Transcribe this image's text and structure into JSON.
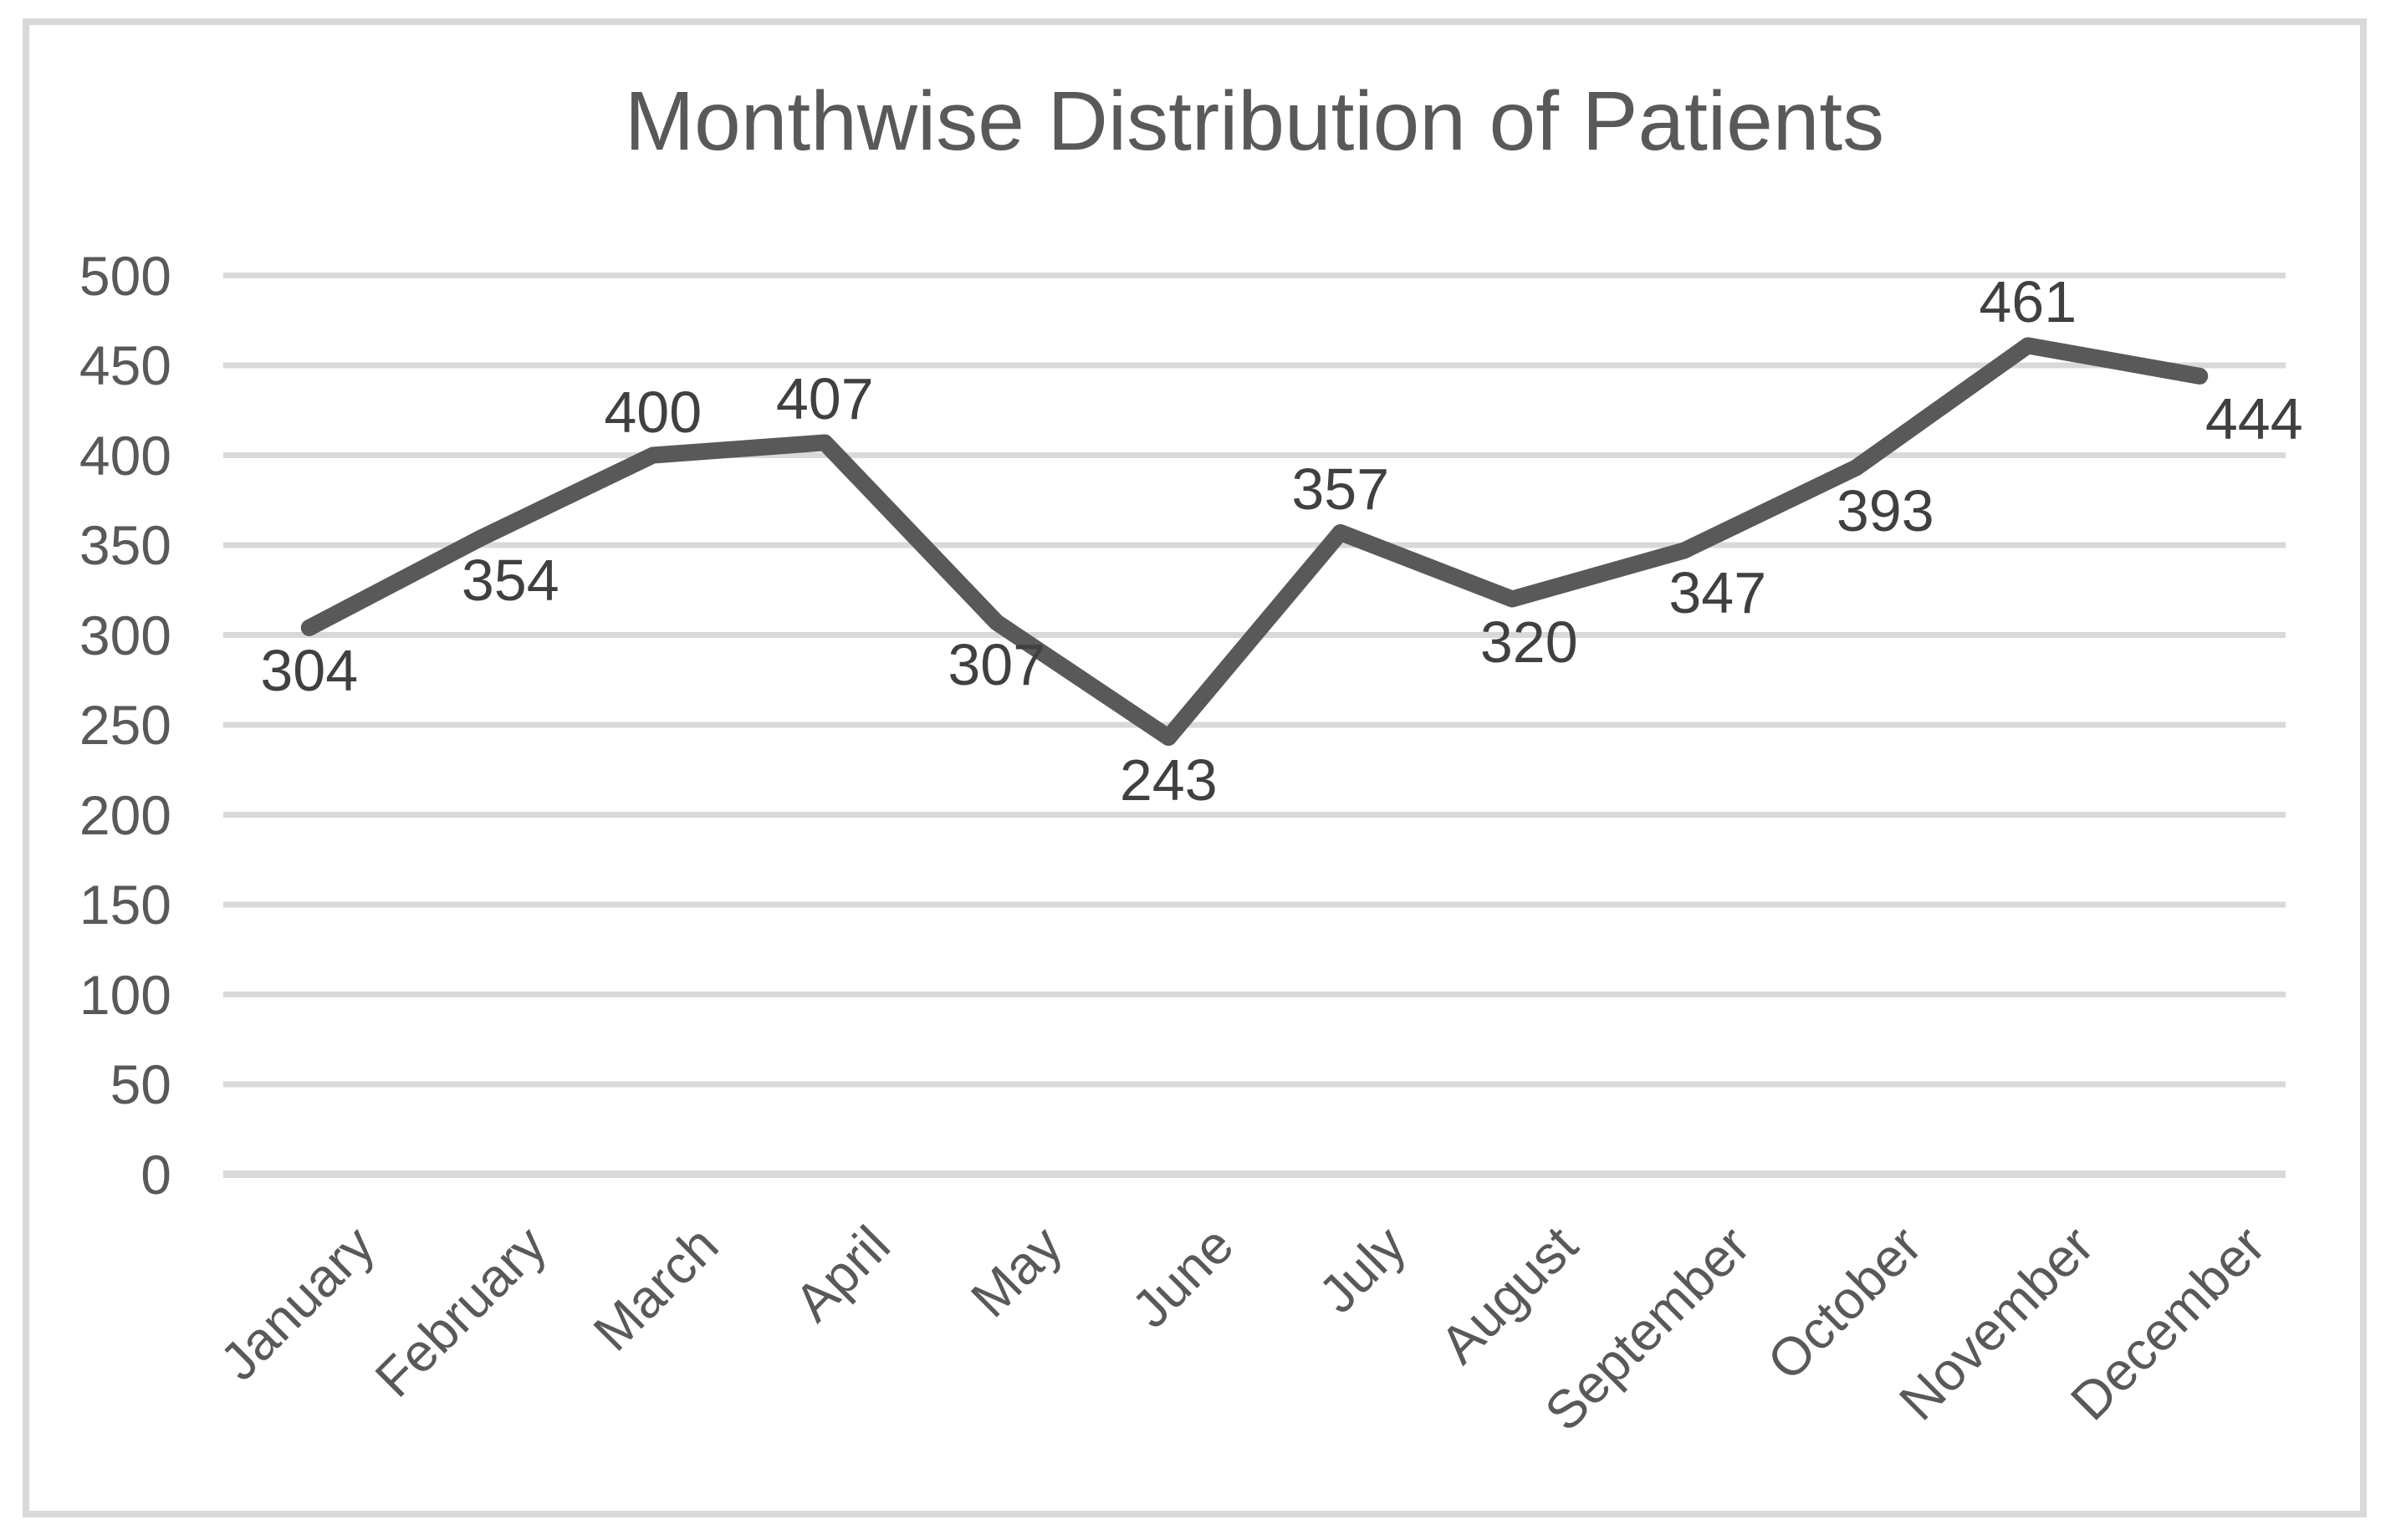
{
  "chart_data": {
    "type": "line",
    "title": "Monthwise Distribution of Patients",
    "categories": [
      "January",
      "February",
      "March",
      "April",
      "May",
      "June",
      "July",
      "August",
      "September",
      "October",
      "November",
      "December"
    ],
    "series": [
      {
        "name": "Patients",
        "values": [
          304,
          354,
          400,
          407,
          307,
          243,
          357,
          320,
          347,
          393,
          461,
          444
        ]
      }
    ],
    "xlabel": "",
    "ylabel": "",
    "ylim": [
      0,
      500
    ],
    "y_tick_step": 50,
    "y_tick_labels": [
      "0",
      "50",
      "100",
      "150",
      "200",
      "250",
      "300",
      "350",
      "400",
      "450",
      "500"
    ],
    "grid": "horizontal",
    "legend": "none",
    "x_label_rotation_deg": 45,
    "data_labels_shown": true,
    "label_positions": [
      "below",
      "below",
      "above",
      "above",
      "below",
      "below",
      "above",
      "below",
      "below",
      "below",
      "above",
      "below"
    ],
    "label_dx": [
      0,
      35,
      0,
      0,
      0,
      0,
      0,
      20,
      40,
      35,
      0,
      65
    ],
    "colors": {
      "line": "#595959",
      "gridline": "#d9d9d9",
      "frame_border": "#d9d9d9",
      "axis_text": "#595959",
      "data_label_text": "#404040",
      "title_text": "#595959",
      "background": "#ffffff"
    }
  }
}
